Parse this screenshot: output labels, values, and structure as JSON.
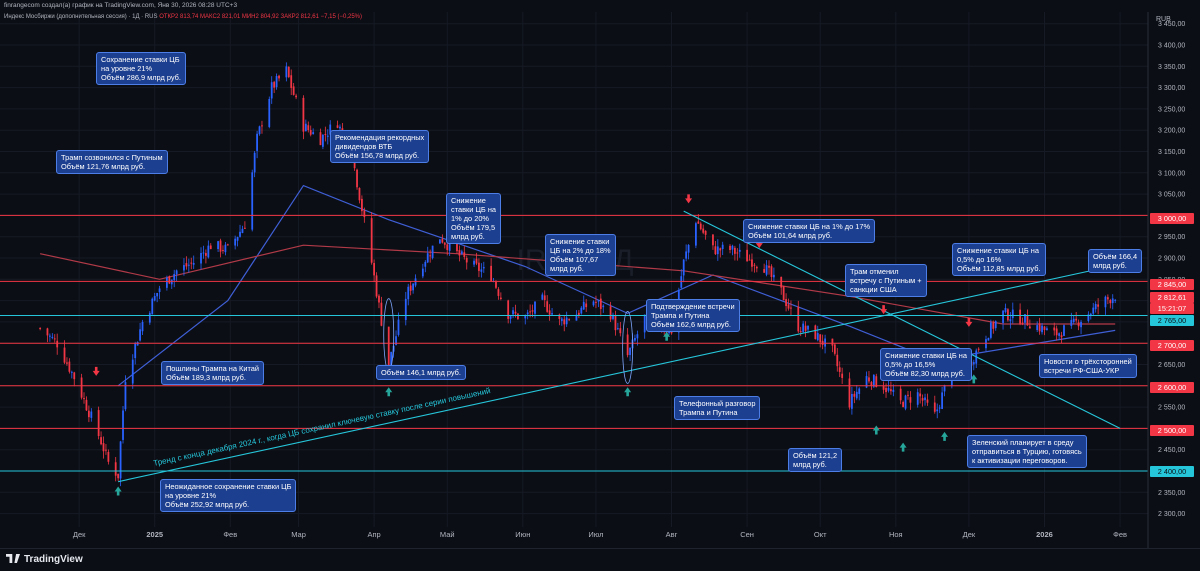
{
  "header": {
    "source_line": "finrangecom создал(а) график на TradingView.com, Янв 30, 2026 08:28 UTC+3",
    "instrument": "Индекс Мосбиржи (дополнительная сессия) · 1Д · RUS",
    "ohlc": "ОТКР2 813,74  МАКС2 821,01  МИН2 804,92  ЗАКР2 812,61  −7,15 (−0,25%)"
  },
  "currency_label": "RUB",
  "watermark": "IRUS 1Д",
  "price_tags": {
    "current": "2 812,61",
    "countdown": "15:21:07",
    "cyan_level": "2 765,00",
    "lvl_3000": "3 000,00",
    "lvl_2845": "2 845,00",
    "lvl_2700": "2 700,00",
    "lvl_2600": "2 600,00",
    "lvl_2500": "2 500,00",
    "lvl_2400": "2 400,00"
  },
  "annotations": [
    {
      "id": "a1",
      "text": "Сохранение ставки ЦБ\nна уровне 21%\nОбъём 286,9 млрд руб."
    },
    {
      "id": "a2",
      "text": "Трамп созвонился с Путиным\nОбъём 121,76 млрд руб."
    },
    {
      "id": "a3",
      "text": "Рекомендация рекордных\nдивидендов ВТБ\nОбъём 156,78 млрд руб."
    },
    {
      "id": "a4",
      "text": "Снижение\nставки ЦБ на\n1% до 20%\nОбъём 179,5\nмлрд руб."
    },
    {
      "id": "a5",
      "text": "Снижение ставки\nЦБ на 2% до 18%\nОбъём 107,67\nмлрд руб."
    },
    {
      "id": "a6",
      "text": "Снижение ставки ЦБ на 1% до 17%\nОбъём 101,64 млрд руб."
    },
    {
      "id": "a7",
      "text": "Подтверждение встречи\nТрампа и Путина\nОбъём 162,6 млрд руб."
    },
    {
      "id": "a8",
      "text": "Трам отменил\nвстречу с Путиным +\nсанкции США"
    },
    {
      "id": "a9",
      "text": "Снижение ставки ЦБ на\n0,5% до 16%\nОбъём 112,85 млрд руб."
    },
    {
      "id": "a10",
      "text": "Объём 166,4\nмлрд руб."
    },
    {
      "id": "a11",
      "text": "Пошлины Трампа на Китай\nОбъём 189,3 млрд руб."
    },
    {
      "id": "a12",
      "text": "Объём 146,1 млрд руб."
    },
    {
      "id": "a13",
      "text": "Снижение ставки ЦБ на\n0,5% до 16,5%\nОбъём 82,30 млрд руб."
    },
    {
      "id": "a14",
      "text": "Новости о трёхсторонней\nвстречи РФ-США-УКР"
    },
    {
      "id": "a15",
      "text": "Телефонный разговор\nТрампа и Путина"
    },
    {
      "id": "a16",
      "text": "Объём 121,2\nмлрд руб."
    },
    {
      "id": "a17",
      "text": "Зеленский планирует в среду\nотправиться в Турцию, готовясь\nк активизации переговоров."
    },
    {
      "id": "a18",
      "text": "Неожиданное сохранение ставки ЦБ\nна уровне 21%\nОбъём 252,92 млрд руб."
    }
  ],
  "trend_label": "Тренд с конца декабря 2024 г., когда ЦБ сохранил ключевую ставку после серии повышений",
  "footer": {
    "brand": "TradingView"
  },
  "colors": {
    "bg": "#0b0e15",
    "up": "#2962ff",
    "down": "#f23645",
    "ma_blue": "#3f5fd6",
    "ma_red": "#b23a48",
    "level_red": "#f23645",
    "level_cyan": "#26c6da",
    "trend": "#26c6da",
    "annotation_bg": "#1d3f8f"
  },
  "chart_data": {
    "type": "candlestick",
    "title": "",
    "ylim": [
      2270,
      3480
    ],
    "y_ticks": [
      "3 450,00",
      "3 400,00",
      "3 350,00",
      "3 300,00",
      "3 250,00",
      "3 200,00",
      "3 150,00",
      "3 100,00",
      "3 050,00",
      "3 000,00",
      "2 950,00",
      "2 900,00",
      "2 850,00",
      "2 800,00",
      "2 750,00",
      "2 700,00",
      "2 650,00",
      "2 600,00",
      "2 550,00",
      "2 500,00",
      "2 450,00",
      "2 400,00",
      "2 350,00",
      "2 300,00"
    ],
    "x_ticks": [
      "Дек",
      "2025",
      "Фев",
      "Мар",
      "Апр",
      "Май",
      "Июн",
      "Июл",
      "Авг",
      "Сен",
      "Окт",
      "Ноя",
      "Дек",
      "2026",
      "Фев"
    ],
    "horizontal_levels": [
      {
        "price": 3000,
        "color": "red"
      },
      {
        "price": 2845,
        "color": "red"
      },
      {
        "price": 2700,
        "color": "red"
      },
      {
        "price": 2600,
        "color": "red"
      },
      {
        "price": 2500,
        "color": "red"
      },
      {
        "price": 2400,
        "color": "cyan"
      },
      {
        "price": 2765,
        "color": "cyan"
      }
    ],
    "trendlines": [
      {
        "name": "uptrend",
        "from": [
          "2024-12-17",
          2375
        ],
        "to": [
          "2026-02-01",
          2885
        ]
      },
      {
        "name": "downtrend",
        "from": [
          "2025-08-06",
          3010
        ],
        "to": [
          "2026-02-01",
          2500
        ]
      }
    ],
    "price_path": [
      [
        "2024-11-15",
        2735
      ],
      [
        "2024-11-22",
        2700
      ],
      [
        "2024-11-29",
        2620
      ],
      [
        "2024-12-05",
        2540
      ],
      [
        "2024-12-10",
        2470
      ],
      [
        "2024-12-13",
        2420
      ],
      [
        "2024-12-17",
        2390
      ],
      [
        "2024-12-20",
        2620
      ],
      [
        "2024-12-27",
        2750
      ],
      [
        "2025-01-03",
        2830
      ],
      [
        "2025-01-10",
        2870
      ],
      [
        "2025-01-17",
        2890
      ],
      [
        "2025-01-24",
        2930
      ],
      [
        "2025-01-31",
        2920
      ],
      [
        "2025-02-07",
        2980
      ],
      [
        "2025-02-12",
        3180
      ],
      [
        "2025-02-18",
        3300
      ],
      [
        "2025-02-24",
        3340
      ],
      [
        "2025-03-03",
        3210
      ],
      [
        "2025-03-10",
        3180
      ],
      [
        "2025-03-17",
        3220
      ],
      [
        "2025-03-24",
        3110
      ],
      [
        "2025-03-31",
        2890
      ],
      [
        "2025-04-07",
        2650
      ],
      [
        "2025-04-14",
        2810
      ],
      [
        "2025-04-21",
        2890
      ],
      [
        "2025-04-28",
        2950
      ],
      [
        "2025-05-05",
        2910
      ],
      [
        "2025-05-12",
        2880
      ],
      [
        "2025-05-19",
        2860
      ],
      [
        "2025-05-26",
        2770
      ],
      [
        "2025-06-02",
        2760
      ],
      [
        "2025-06-09",
        2800
      ],
      [
        "2025-06-16",
        2750
      ],
      [
        "2025-06-23",
        2770
      ],
      [
        "2025-06-30",
        2800
      ],
      [
        "2025-07-07",
        2770
      ],
      [
        "2025-07-14",
        2670
      ],
      [
        "2025-07-21",
        2760
      ],
      [
        "2025-07-28",
        2740
      ],
      [
        "2025-08-01",
        2730
      ],
      [
        "2025-08-06",
        2890
      ],
      [
        "2025-08-11",
        2990
      ],
      [
        "2025-08-18",
        2920
      ],
      [
        "2025-08-25",
        2920
      ],
      [
        "2025-09-01",
        2900
      ],
      [
        "2025-09-08",
        2880
      ],
      [
        "2025-09-15",
        2820
      ],
      [
        "2025-09-22",
        2740
      ],
      [
        "2025-09-29",
        2720
      ],
      [
        "2025-10-06",
        2680
      ],
      [
        "2025-10-13",
        2560
      ],
      [
        "2025-10-20",
        2620
      ],
      [
        "2025-10-27",
        2600
      ],
      [
        "2025-11-03",
        2560
      ],
      [
        "2025-11-10",
        2580
      ],
      [
        "2025-11-17",
        2530
      ],
      [
        "2025-11-24",
        2640
      ],
      [
        "2025-12-01",
        2650
      ],
      [
        "2025-12-08",
        2720
      ],
      [
        "2025-12-15",
        2770
      ],
      [
        "2025-12-22",
        2760
      ],
      [
        "2026-01-05",
        2720
      ],
      [
        "2026-01-12",
        2740
      ],
      [
        "2026-01-19",
        2770
      ],
      [
        "2026-01-26",
        2800
      ],
      [
        "2026-01-30",
        2812.61
      ]
    ],
    "moving_averages": [
      {
        "color": "blue",
        "approx_path": [
          [
            "2024-12-17",
            2600
          ],
          [
            "2025-01-31",
            2800
          ],
          [
            "2025-03-03",
            3070
          ],
          [
            "2025-04-07",
            2990
          ],
          [
            "2025-06-02",
            2880
          ],
          [
            "2025-07-14",
            2770
          ],
          [
            "2025-08-18",
            2860
          ],
          [
            "2025-10-13",
            2740
          ],
          [
            "2025-11-17",
            2660
          ],
          [
            "2026-01-30",
            2730
          ]
        ]
      },
      {
        "color": "red",
        "approx_path": [
          [
            "2024-11-15",
            2910
          ],
          [
            "2025-01-03",
            2850
          ],
          [
            "2025-03-03",
            2930
          ],
          [
            "2025-05-05",
            2910
          ],
          [
            "2025-08-06",
            2870
          ],
          [
            "2025-10-13",
            2810
          ],
          [
            "2025-12-15",
            2745
          ],
          [
            "2026-01-30",
            2745
          ]
        ]
      }
    ],
    "last_value": 2812.61,
    "current_price_label": "2 812,61"
  }
}
